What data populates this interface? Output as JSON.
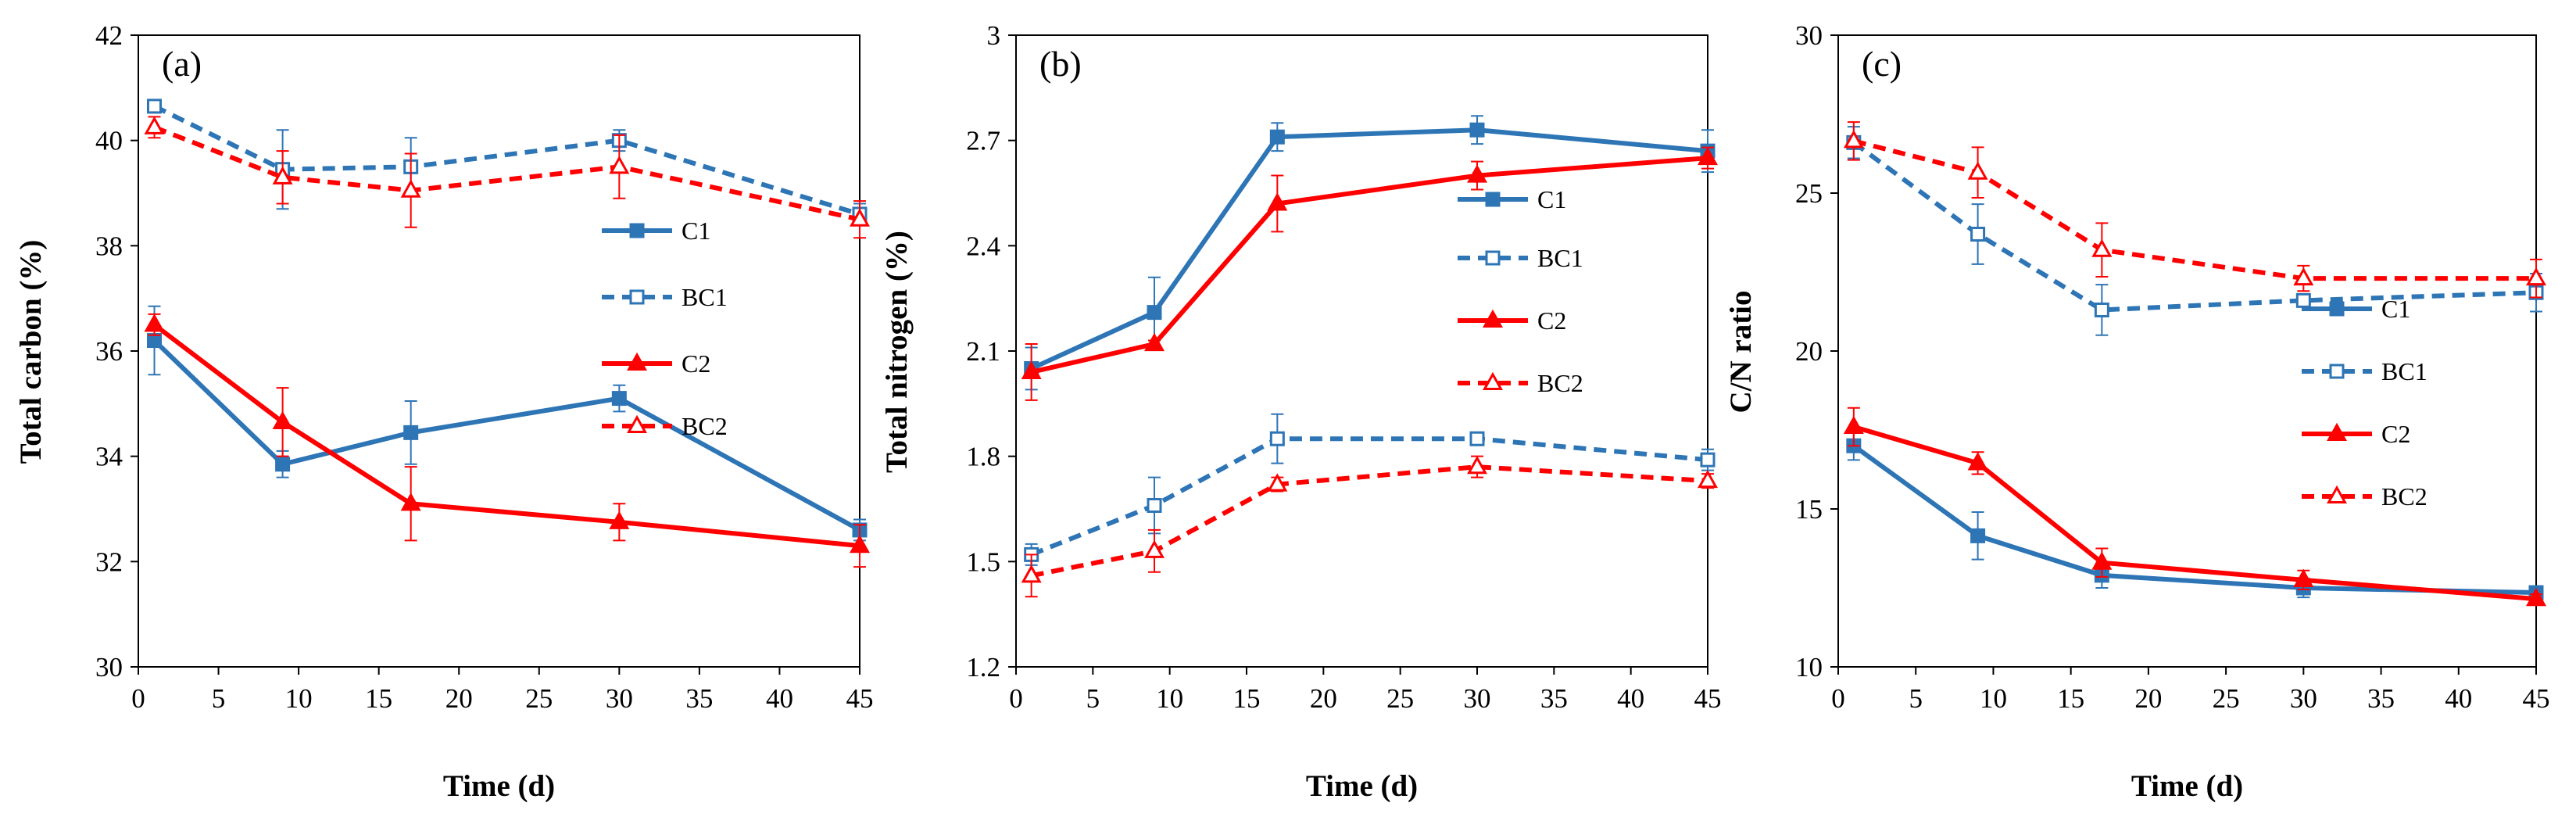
{
  "colors": {
    "blue": "#2E75B6",
    "red": "#FF0000",
    "axis": "#000000"
  },
  "chart_data": [
    {
      "type": "line",
      "panel_label": "(a)",
      "xlabel": "Time (d)",
      "ylabel": "Total carbon (%)",
      "xlim": [
        0,
        45
      ],
      "ylim": [
        30,
        42
      ],
      "xticks": [
        "0",
        "5",
        "10",
        "15",
        "20",
        "25",
        "30",
        "35",
        "40",
        "45"
      ],
      "yticks": [
        "30",
        "32",
        "34",
        "36",
        "38",
        "40",
        "42"
      ],
      "legend_position": "right",
      "x": [
        1,
        9,
        17,
        30,
        45
      ],
      "series": [
        {
          "name": "C1",
          "color": "#2E75B6",
          "dash": false,
          "marker": "square",
          "filled": true,
          "values": [
            36.2,
            33.85,
            34.45,
            35.1,
            32.6
          ],
          "errors": [
            0.65,
            0.25,
            0.6,
            0.25,
            0.2
          ]
        },
        {
          "name": "BC1",
          "color": "#2E75B6",
          "dash": true,
          "marker": "square",
          "filled": false,
          "values": [
            40.65,
            39.45,
            39.5,
            40.0,
            38.6
          ],
          "errors": [
            0.12,
            0.75,
            0.55,
            0.2,
            0.2
          ]
        },
        {
          "name": "C2",
          "color": "#FF0000",
          "dash": false,
          "marker": "triangle",
          "filled": true,
          "values": [
            36.5,
            34.65,
            33.1,
            32.75,
            32.3
          ],
          "errors": [
            0.2,
            0.65,
            0.7,
            0.35,
            0.4
          ]
        },
        {
          "name": "BC2",
          "color": "#FF0000",
          "dash": true,
          "marker": "triangle",
          "filled": false,
          "values": [
            40.25,
            39.3,
            39.05,
            39.5,
            38.5
          ],
          "errors": [
            0.2,
            0.5,
            0.7,
            0.6,
            0.35
          ]
        }
      ]
    },
    {
      "type": "line",
      "panel_label": "(b)",
      "xlabel": "Time (d)",
      "ylabel": "Total nitrogen (%)",
      "xlim": [
        0,
        45
      ],
      "ylim": [
        1.2,
        3.0
      ],
      "xticks": [
        "0",
        "5",
        "10",
        "15",
        "20",
        "25",
        "30",
        "35",
        "40",
        "45"
      ],
      "yticks": [
        "1.2",
        "1.5",
        "1.8",
        "2.1",
        "2.4",
        "2.7",
        "3"
      ],
      "legend_position": "right",
      "x": [
        1,
        9,
        17,
        30,
        45
      ],
      "series": [
        {
          "name": "C1",
          "color": "#2E75B6",
          "dash": false,
          "marker": "square",
          "filled": true,
          "values": [
            2.05,
            2.21,
            2.71,
            2.73,
            2.67
          ],
          "errors": [
            0.06,
            0.1,
            0.04,
            0.04,
            0.06
          ]
        },
        {
          "name": "BC1",
          "color": "#2E75B6",
          "dash": true,
          "marker": "square",
          "filled": false,
          "values": [
            1.52,
            1.66,
            1.85,
            1.85,
            1.79
          ],
          "errors": [
            0.03,
            0.08,
            0.07,
            0.01,
            0.03
          ]
        },
        {
          "name": "C2",
          "color": "#FF0000",
          "dash": false,
          "marker": "triangle",
          "filled": true,
          "values": [
            2.04,
            2.12,
            2.52,
            2.6,
            2.65
          ],
          "errors": [
            0.08,
            0.01,
            0.08,
            0.04,
            0.03
          ]
        },
        {
          "name": "BC2",
          "color": "#FF0000",
          "dash": true,
          "marker": "triangle",
          "filled": false,
          "values": [
            1.46,
            1.53,
            1.72,
            1.77,
            1.73
          ],
          "errors": [
            0.06,
            0.06,
            0.02,
            0.03,
            0.02
          ]
        }
      ]
    },
    {
      "type": "line",
      "panel_label": "(c)",
      "xlabel": "Time (d)",
      "ylabel": "C/N ratio",
      "xlim": [
        0,
        45
      ],
      "ylim": [
        10,
        30
      ],
      "xticks": [
        "0",
        "5",
        "10",
        "15",
        "20",
        "25",
        "30",
        "35",
        "40",
        "45"
      ],
      "yticks": [
        "10",
        "15",
        "20",
        "25",
        "30"
      ],
      "legend_position": "right",
      "x": [
        1,
        9,
        17,
        30,
        45
      ],
      "series": [
        {
          "name": "C1",
          "color": "#2E75B6",
          "dash": false,
          "marker": "square",
          "filled": true,
          "values": [
            17.0,
            14.15,
            12.9,
            12.5,
            12.35
          ],
          "errors": [
            0.45,
            0.75,
            0.4,
            0.3,
            0.15
          ]
        },
        {
          "name": "BC1",
          "color": "#2E75B6",
          "dash": true,
          "marker": "square",
          "filled": false,
          "values": [
            26.6,
            23.7,
            21.3,
            21.6,
            21.85
          ],
          "errors": [
            0.5,
            0.95,
            0.8,
            0.2,
            0.6
          ]
        },
        {
          "name": "C2",
          "color": "#FF0000",
          "dash": false,
          "marker": "triangle",
          "filled": true,
          "values": [
            17.6,
            16.45,
            13.3,
            12.75,
            12.15
          ],
          "errors": [
            0.6,
            0.35,
            0.45,
            0.3,
            0.15
          ]
        },
        {
          "name": "BC2",
          "color": "#FF0000",
          "dash": true,
          "marker": "triangle",
          "filled": false,
          "values": [
            26.65,
            25.65,
            23.2,
            22.3,
            22.3
          ],
          "errors": [
            0.6,
            0.8,
            0.85,
            0.4,
            0.6
          ]
        }
      ]
    }
  ]
}
